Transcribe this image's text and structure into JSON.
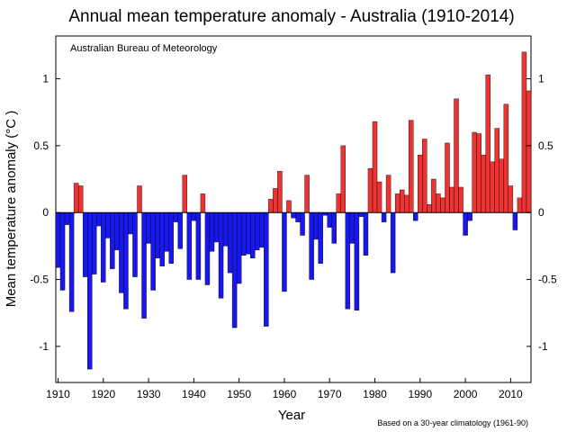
{
  "chart_data": {
    "type": "bar",
    "title": "Annual mean temperature anomaly - Australia (1910-2014)",
    "source_label": "Australian Bureau of Meteorology",
    "xlabel": "Year",
    "ylabel": "Mean temperature anomaly (°C )",
    "footnote": "Based on a 30-year climatology (1961-90)",
    "xlim": [
      1909.5,
      2014.5
    ],
    "ylim": [
      -1.27,
      1.32
    ],
    "xticks": [
      1910,
      1920,
      1930,
      1940,
      1950,
      1960,
      1970,
      1980,
      1990,
      2000,
      2010
    ],
    "xtick_labels": [
      "1910",
      "1920",
      "1930",
      "1940",
      "1950",
      "1960",
      "1970",
      "1980",
      "1990",
      "2000",
      "2010"
    ],
    "yticks": [
      -1,
      -0.5,
      0,
      0.5,
      1
    ],
    "ytick_labels": [
      "-1",
      "-0.5",
      "0",
      "0.5",
      "1"
    ],
    "positive_color": "#ee3333",
    "negative_color": "#1818ee",
    "grid": false,
    "legend": "none",
    "x": [
      1910,
      1911,
      1912,
      1913,
      1914,
      1915,
      1916,
      1917,
      1918,
      1919,
      1920,
      1921,
      1922,
      1923,
      1924,
      1925,
      1926,
      1927,
      1928,
      1929,
      1930,
      1931,
      1932,
      1933,
      1934,
      1935,
      1936,
      1937,
      1938,
      1939,
      1940,
      1941,
      1942,
      1943,
      1944,
      1945,
      1946,
      1947,
      1948,
      1949,
      1950,
      1951,
      1952,
      1953,
      1954,
      1955,
      1956,
      1957,
      1958,
      1959,
      1960,
      1961,
      1962,
      1963,
      1964,
      1965,
      1966,
      1967,
      1968,
      1969,
      1970,
      1971,
      1972,
      1973,
      1974,
      1975,
      1976,
      1977,
      1978,
      1979,
      1980,
      1981,
      1982,
      1983,
      1984,
      1985,
      1986,
      1987,
      1988,
      1989,
      1990,
      1991,
      1992,
      1993,
      1994,
      1995,
      1996,
      1997,
      1998,
      1999,
      2000,
      2001,
      2002,
      2003,
      2004,
      2005,
      2006,
      2007,
      2008,
      2009,
      2010,
      2011,
      2012,
      2013,
      2014
    ],
    "values": [
      -0.41,
      -0.58,
      -0.09,
      -0.74,
      0.22,
      0.2,
      -0.48,
      -1.17,
      -0.46,
      -0.1,
      -0.52,
      -0.19,
      -0.42,
      -0.28,
      -0.6,
      -0.72,
      -0.16,
      -0.48,
      0.2,
      -0.79,
      -0.23,
      -0.58,
      -0.34,
      -0.4,
      -0.29,
      -0.38,
      -0.07,
      -0.27,
      0.28,
      -0.5,
      -0.06,
      -0.5,
      0.14,
      -0.54,
      -0.29,
      -0.22,
      -0.64,
      -0.25,
      -0.45,
      -0.86,
      -0.53,
      -0.32,
      -0.31,
      -0.34,
      -0.28,
      -0.26,
      -0.85,
      0.1,
      0.18,
      0.31,
      -0.59,
      0.09,
      -0.04,
      -0.07,
      -0.17,
      0.28,
      -0.5,
      -0.2,
      -0.38,
      -0.02,
      -0.11,
      -0.23,
      0.14,
      0.5,
      -0.72,
      -0.23,
      -0.73,
      -0.03,
      -0.32,
      0.33,
      0.68,
      0.23,
      -0.07,
      0.28,
      -0.45,
      0.14,
      0.17,
      0.13,
      0.69,
      -0.06,
      0.43,
      0.55,
      0.06,
      0.25,
      0.14,
      0.11,
      0.52,
      0.19,
      0.85,
      0.19,
      -0.17,
      -0.06,
      0.6,
      0.59,
      0.43,
      1.03,
      0.38,
      0.63,
      0.4,
      0.81,
      0.2,
      -0.13,
      0.11,
      1.2,
      0.91
    ]
  }
}
